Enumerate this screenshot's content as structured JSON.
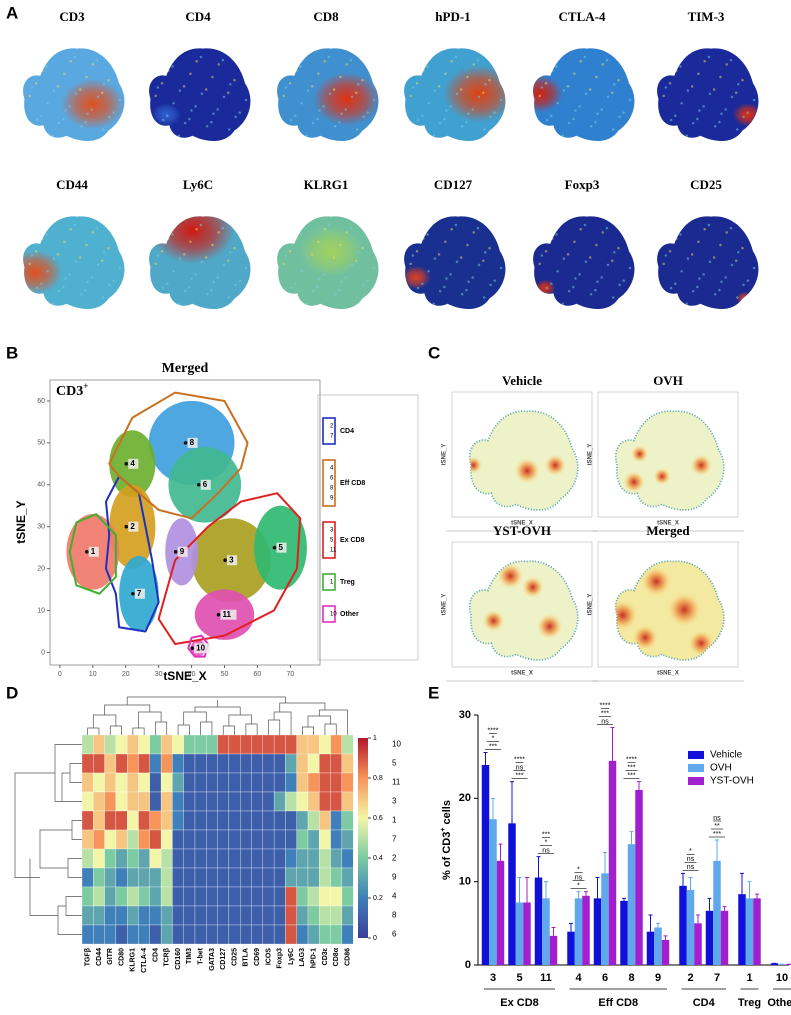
{
  "panels": {
    "A": {
      "label": "A",
      "markers": [
        {
          "name": "CD3",
          "base": "#5aa8e0",
          "hot": "#e05020"
        },
        {
          "name": "CD4",
          "base": "#1a2a9a",
          "hot": "#3060d0"
        },
        {
          "name": "CD8",
          "base": "#4090d0",
          "hot": "#e03010"
        },
        {
          "name": "hPD-1",
          "base": "#40a0d0",
          "hot": "#e04010"
        },
        {
          "name": "CTLA-4",
          "base": "#3080d0",
          "hot": "#d02010"
        },
        {
          "name": "TIM-3",
          "base": "#1a2a9a",
          "hot": "#e03010"
        },
        {
          "name": "CD44",
          "base": "#50b0d0",
          "hot": "#e05020"
        },
        {
          "name": "Ly6C",
          "base": "#50a8c8",
          "hot": "#d01a10"
        },
        {
          "name": "KLRG1",
          "base": "#70c0a0",
          "hot": "#a0d060"
        },
        {
          "name": "CD127",
          "base": "#1a3090",
          "hot": "#e04020"
        },
        {
          "name": "Foxp3",
          "base": "#1a2a90",
          "hot": "#e03010"
        },
        {
          "name": "CD25",
          "base": "#1a2a90",
          "hot": "#e04020"
        }
      ]
    },
    "B": {
      "label": "B",
      "title": "Merged",
      "tag": "CD3",
      "tag_sup": "+",
      "x_label": "tSNE_X",
      "y_label": "tSNE_Y",
      "xlim": [
        -3,
        79
      ],
      "ylim": [
        -3,
        65
      ],
      "xticks": [
        0,
        10,
        20,
        30,
        40,
        50,
        60,
        70
      ],
      "yticks": [
        0,
        10,
        20,
        30,
        40,
        50,
        60
      ],
      "clusters": [
        {
          "id": "1",
          "x": 10,
          "y": 24,
          "color": "#f07a6a"
        },
        {
          "id": "2",
          "x": 22,
          "y": 30,
          "color": "#d4a020"
        },
        {
          "id": "3",
          "x": 52,
          "y": 22,
          "color": "#a8a020"
        },
        {
          "id": "4",
          "x": 22,
          "y": 45,
          "color": "#6cb030"
        },
        {
          "id": "5",
          "x": 67,
          "y": 25,
          "color": "#30b870"
        },
        {
          "id": "6",
          "x": 44,
          "y": 40,
          "color": "#40b890"
        },
        {
          "id": "7",
          "x": 24,
          "y": 14,
          "color": "#30a8d0"
        },
        {
          "id": "8",
          "x": 40,
          "y": 50,
          "color": "#40a0e0"
        },
        {
          "id": "9",
          "x": 37,
          "y": 24,
          "color": "#b090e0"
        },
        {
          "id": "10",
          "x": 42,
          "y": 1,
          "color": "#e060c0"
        },
        {
          "id": "11",
          "x": 50,
          "y": 9,
          "color": "#e050b0"
        }
      ],
      "groups": [
        {
          "name": "CD4",
          "members": [
            "2",
            "7"
          ],
          "color": "#2030c0"
        },
        {
          "name": "Eff CD8",
          "members": [
            "4",
            "6",
            "8",
            "9"
          ],
          "color": "#c87020"
        },
        {
          "name": "Ex CD8",
          "members": [
            "3",
            "5",
            "11"
          ],
          "color": "#e02020"
        },
        {
          "name": "Treg",
          "members": [
            "1"
          ],
          "color": "#40b030"
        },
        {
          "name": "Other",
          "members": [
            "10"
          ],
          "color": "#e030c0"
        }
      ]
    },
    "C": {
      "label": "C",
      "plots": [
        {
          "title": "Vehicle",
          "x_label": "tSNE_X",
          "y_label": "tSNE_Y"
        },
        {
          "title": "OVH",
          "x_label": "tSNE_X",
          "y_label": "tSNE_Y"
        },
        {
          "title": "YST-OVH",
          "x_label": "tSNE_X",
          "y_label": "tSNE_Y"
        },
        {
          "title": "Merged",
          "x_label": "tSNE_X",
          "y_label": "tSNE_Y"
        }
      ]
    },
    "D": {
      "label": "D",
      "zlim": [
        0,
        1
      ],
      "zticks": [
        0,
        0.2,
        0.4,
        0.6,
        0.8,
        1
      ],
      "rows": [
        "10",
        "5",
        "11",
        "3",
        "1",
        "7",
        "2",
        "9",
        "4",
        "8",
        "6"
      ],
      "columns": [
        "TGFβ",
        "CD44",
        "GITR",
        "CD80",
        "KLRG1",
        "CTLA-4",
        "CD4",
        "TCRβ",
        "CD160",
        "TIM3",
        "T-bet",
        "GATA3",
        "CD127",
        "CD25",
        "BTLA",
        "CD69",
        "ICOS",
        "Foxp3",
        "Ly6C",
        "LAG3",
        "hPD-1",
        "CD3ε",
        "CD8α",
        "CD86"
      ],
      "values": [
        [
          0.5,
          0.7,
          0.5,
          0.6,
          0.7,
          0.6,
          0.4,
          0.7,
          0.6,
          0.4,
          0.4,
          0.4,
          0.9,
          0.9,
          0.9,
          0.9,
          0.9,
          0.9,
          0.9,
          0.7,
          0.7,
          0.6,
          0.8,
          0.5
        ],
        [
          0.9,
          0.9,
          0.7,
          0.9,
          0.8,
          0.9,
          0.2,
          0.8,
          0.2,
          0.1,
          0.1,
          0.1,
          0.1,
          0.1,
          0.1,
          0.1,
          0.1,
          0.1,
          0.3,
          0.7,
          0.6,
          0.9,
          0.9,
          0.7
        ],
        [
          0.7,
          0.6,
          0.7,
          0.6,
          0.7,
          0.6,
          0.1,
          0.6,
          0.3,
          0.1,
          0.1,
          0.1,
          0.1,
          0.1,
          0.1,
          0.1,
          0.1,
          0.1,
          0.2,
          0.7,
          0.8,
          0.9,
          0.9,
          0.8
        ],
        [
          0.6,
          0.7,
          0.8,
          0.6,
          0.7,
          0.7,
          0.1,
          0.7,
          0.2,
          0.1,
          0.1,
          0.1,
          0.1,
          0.1,
          0.1,
          0.1,
          0.1,
          0.3,
          0.5,
          0.6,
          0.7,
          0.9,
          0.9,
          0.7
        ],
        [
          0.9,
          0.7,
          0.9,
          0.9,
          0.6,
          0.9,
          0.8,
          0.7,
          0.2,
          0.1,
          0.1,
          0.1,
          0.1,
          0.1,
          0.1,
          0.1,
          0.1,
          0.1,
          0.1,
          0.3,
          0.5,
          0.7,
          0.2,
          0.4
        ],
        [
          0.7,
          0.8,
          0.6,
          0.7,
          0.5,
          0.8,
          0.9,
          0.6,
          0.1,
          0.1,
          0.1,
          0.1,
          0.1,
          0.1,
          0.1,
          0.1,
          0.1,
          0.1,
          0.1,
          0.4,
          0.3,
          0.6,
          0.2,
          0.3
        ],
        [
          0.5,
          0.6,
          0.4,
          0.3,
          0.4,
          0.3,
          0.6,
          0.5,
          0.1,
          0.1,
          0.1,
          0.1,
          0.1,
          0.1,
          0.1,
          0.1,
          0.1,
          0.1,
          0.2,
          0.3,
          0.3,
          0.5,
          0.3,
          0.2
        ],
        [
          0.2,
          0.4,
          0.3,
          0.2,
          0.3,
          0.3,
          0.3,
          0.5,
          0.1,
          0.1,
          0.1,
          0.1,
          0.1,
          0.1,
          0.1,
          0.1,
          0.1,
          0.1,
          0.3,
          0.3,
          0.3,
          0.5,
          0.4,
          0.3
        ],
        [
          0.4,
          0.5,
          0.3,
          0.4,
          0.5,
          0.4,
          0.3,
          0.5,
          0.1,
          0.1,
          0.1,
          0.1,
          0.1,
          0.1,
          0.1,
          0.1,
          0.1,
          0.1,
          0.9,
          0.4,
          0.5,
          0.6,
          0.6,
          0.4
        ],
        [
          0.3,
          0.3,
          0.2,
          0.2,
          0.3,
          0.2,
          0.2,
          0.3,
          0.1,
          0.1,
          0.1,
          0.1,
          0.1,
          0.1,
          0.1,
          0.1,
          0.1,
          0.1,
          0.9,
          0.3,
          0.4,
          0.5,
          0.5,
          0.3
        ],
        [
          0.2,
          0.2,
          0.2,
          0.1,
          0.2,
          0.2,
          0.1,
          0.3,
          0.1,
          0.1,
          0.1,
          0.1,
          0.1,
          0.1,
          0.1,
          0.1,
          0.1,
          0.1,
          0.9,
          0.2,
          0.3,
          0.4,
          0.4,
          0.2
        ]
      ]
    },
    "E": {
      "label": "E",
      "type": "bar",
      "y_label": "% of CD3",
      "y_label_sup": "+",
      "y_label_end": " cells",
      "ylim": [
        0,
        30
      ],
      "yticks": [
        0,
        10,
        20,
        30
      ],
      "groups": [
        {
          "name": "Ex CD8",
          "categories": [
            "3",
            "5",
            "11"
          ]
        },
        {
          "name": "Eff CD8",
          "categories": [
            "4",
            "6",
            "8",
            "9"
          ]
        },
        {
          "name": "CD4",
          "categories": [
            "2",
            "7"
          ]
        },
        {
          "name": "Treg",
          "categories": [
            "1"
          ]
        },
        {
          "name": "Other",
          "categories": [
            "10"
          ]
        }
      ],
      "series": [
        {
          "name": "Vehicle",
          "color": "#1010d8",
          "values": [
            24,
            17,
            10.5,
            4,
            8,
            7.7,
            4,
            9.5,
            6.5,
            8.5,
            0.2
          ],
          "errors": [
            1.5,
            5,
            2.5,
            1,
            2.5,
            0.3,
            2,
            1.5,
            1.5,
            2.5,
            0
          ]
        },
        {
          "name": "OVH",
          "color": "#60a8ec",
          "values": [
            17.5,
            7.5,
            8,
            8,
            11,
            14.5,
            4.5,
            9,
            12.5,
            8,
            0.1
          ],
          "errors": [
            2.5,
            3,
            2,
            0.8,
            2.5,
            1.5,
            0.5,
            1.5,
            2.5,
            2,
            0
          ]
        },
        {
          "name": "YST-OVH",
          "color": "#a020d0",
          "values": [
            12.5,
            7.5,
            3.5,
            8.3,
            24.5,
            21,
            3,
            5,
            6.5,
            8,
            0.1
          ],
          "errors": [
            2,
            3,
            1,
            0.5,
            4,
            1,
            0.5,
            1,
            0.5,
            0.5,
            0
          ]
        }
      ],
      "significance": [
        [
          "***",
          "*",
          "****"
        ],
        [
          "***",
          "ns",
          "****"
        ],
        [
          "ns",
          "*",
          "***"
        ],
        [
          "*",
          "ns",
          "*"
        ],
        [
          "ns",
          "***",
          "****"
        ],
        [
          "***",
          "***",
          "****"
        ],
        [],
        [
          "ns",
          "ns",
          "*"
        ],
        [
          "***",
          "**",
          "ns"
        ],
        [],
        []
      ]
    }
  }
}
